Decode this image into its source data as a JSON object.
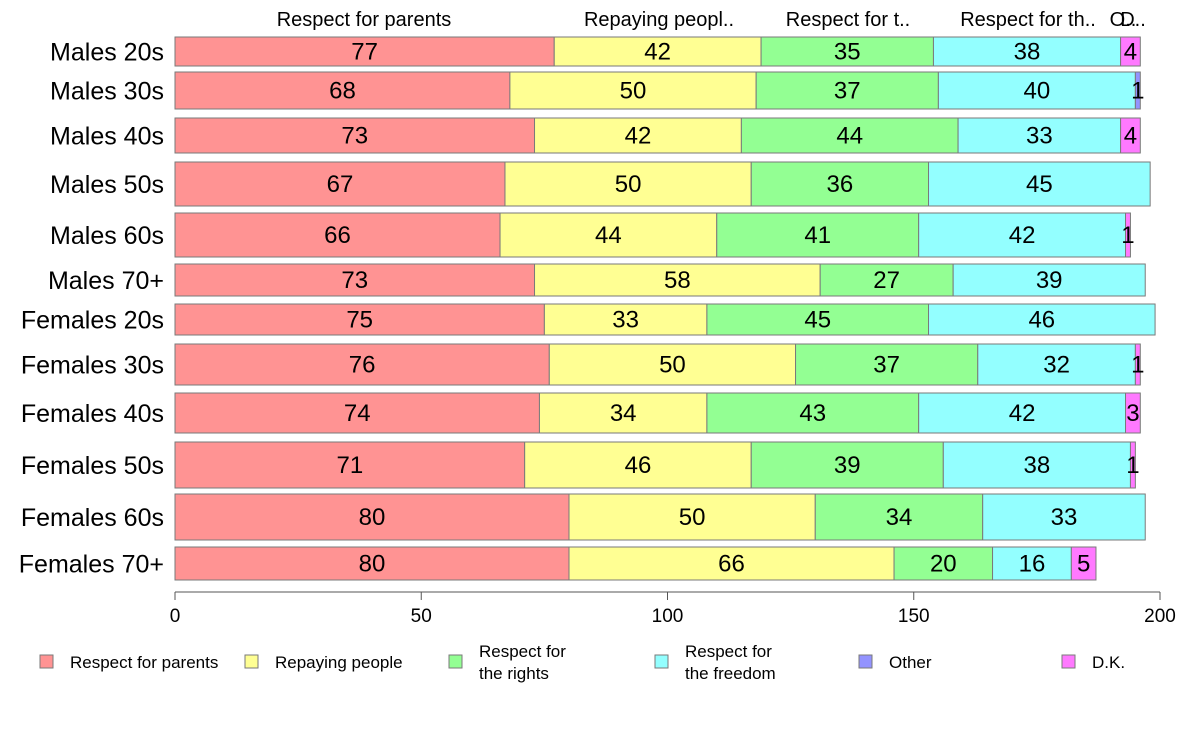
{
  "chart_data": {
    "type": "bar",
    "orientation": "horizontal",
    "stacked": true,
    "categories": [
      "Males 20s",
      "Males 30s",
      "Males 40s",
      "Males 50s",
      "Males 60s",
      "Males 70+",
      "Females 20s",
      "Females 30s",
      "Females 40s",
      "Females 50s",
      "Females 60s",
      "Females 70+"
    ],
    "series": [
      {
        "name": "Respect for parents",
        "color": "#ff9393",
        "values": [
          77,
          68,
          73,
          67,
          66,
          73,
          75,
          76,
          74,
          71,
          80,
          80
        ]
      },
      {
        "name": "Repaying people",
        "color": "#ffff93",
        "values": [
          42,
          50,
          42,
          50,
          44,
          58,
          33,
          50,
          34,
          46,
          50,
          66
        ]
      },
      {
        "name": "Respect for the rights",
        "color": "#93ff93",
        "values": [
          35,
          37,
          44,
          36,
          41,
          27,
          45,
          37,
          43,
          39,
          34,
          20
        ]
      },
      {
        "name": "Respect for the freedom",
        "color": "#93ffff",
        "values": [
          38,
          40,
          33,
          45,
          42,
          39,
          46,
          32,
          42,
          38,
          33,
          16
        ]
      },
      {
        "name": "Other",
        "color": "#9393ff",
        "values": [
          0,
          1,
          0,
          0,
          0,
          0,
          0,
          0,
          0,
          0,
          0,
          0
        ]
      },
      {
        "name": "D.K.",
        "color": "#ff79ff",
        "values": [
          4,
          0,
          4,
          0,
          1,
          0,
          0,
          1,
          3,
          1,
          0,
          5
        ]
      }
    ],
    "xlim": [
      0,
      200
    ],
    "xticks": [
      0,
      50,
      100,
      150,
      200
    ],
    "column_headers": [
      "Respect for parents",
      "Repaying peopl..",
      "Respect for t..",
      "Respect for th..",
      "O..",
      "D.."
    ],
    "legend": {
      "position": "bottom",
      "items": [
        {
          "lines": [
            "Respect for parents"
          ],
          "color": "#ff9393"
        },
        {
          "lines": [
            "Repaying people"
          ],
          "color": "#ffff93"
        },
        {
          "lines": [
            "Respect for",
            "the rights"
          ],
          "color": "#93ff93"
        },
        {
          "lines": [
            "Respect for",
            "the freedom"
          ],
          "color": "#93ffff"
        },
        {
          "lines": [
            "Other"
          ],
          "color": "#9393ff"
        },
        {
          "lines": [
            "D.K."
          ],
          "color": "#ff79ff"
        }
      ]
    },
    "grid": false
  }
}
